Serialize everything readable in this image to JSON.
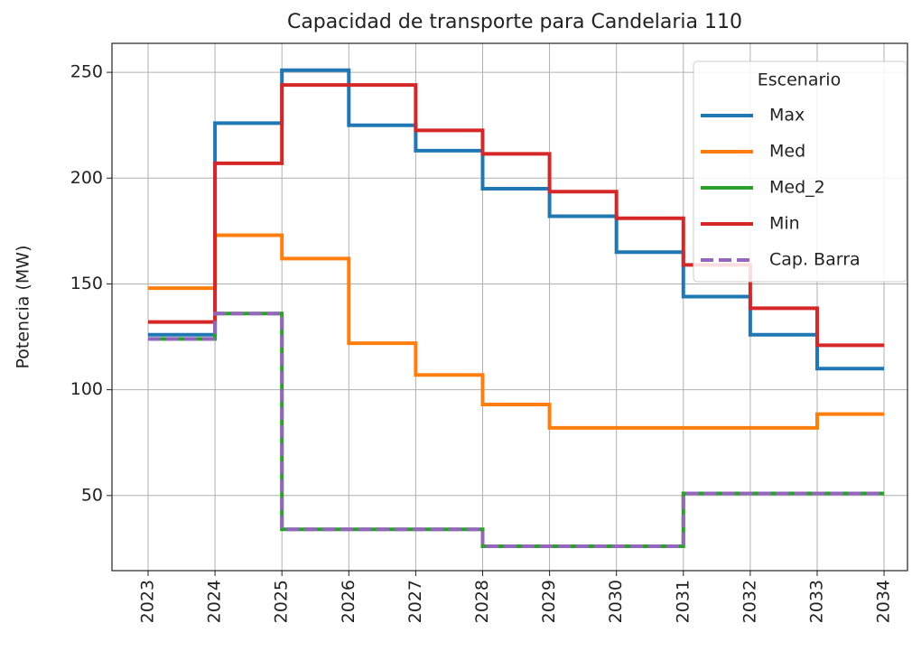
{
  "chart_data": {
    "type": "line",
    "drawstyle": "steps-post",
    "title": "Capacidad de transporte para Candelaria 110",
    "ylabel": "Potencia (MW)",
    "legend_title": "Escenario",
    "legend": "upper right",
    "grid": true,
    "x": [
      2023,
      2024,
      2025,
      2026,
      2027,
      2028,
      2029,
      2030,
      2031,
      2032,
      2033,
      2034
    ],
    "xlim": [
      2022.46,
      2034.35
    ],
    "xticks": [
      2023,
      2024,
      2025,
      2026,
      2027,
      2028,
      2029,
      2030,
      2031,
      2032,
      2033,
      2034
    ],
    "ylim": [
      14.5,
      263.7
    ],
    "yticks": [
      50,
      100,
      150,
      200,
      250
    ],
    "series": [
      {
        "name": "Max",
        "color": "#1f77b4",
        "dash": false,
        "values": [
          126,
          226,
          251,
          225,
          213,
          195,
          182,
          165,
          144,
          126,
          110,
          110
        ]
      },
      {
        "name": "Med",
        "color": "#ff7f0e",
        "dash": false,
        "values": [
          148,
          173,
          162,
          122,
          107,
          93,
          82,
          82,
          82,
          82,
          88.5,
          88.5
        ]
      },
      {
        "name": "Med_2",
        "color": "#2ca02c",
        "dash": false,
        "values": [
          124,
          136,
          34,
          34,
          34,
          26,
          26,
          26,
          51,
          51,
          51,
          51
        ]
      },
      {
        "name": "Min",
        "color": "#d62728",
        "dash": false,
        "values": [
          132,
          207,
          244,
          244,
          222.6,
          211.5,
          193.6,
          181,
          159,
          138.5,
          121,
          121
        ]
      },
      {
        "name": "Cap. Barra",
        "color": "#9467bd",
        "dash": true,
        "values": [
          124,
          136,
          34,
          34,
          34,
          26,
          26,
          26,
          51,
          51,
          51,
          51
        ]
      }
    ]
  }
}
